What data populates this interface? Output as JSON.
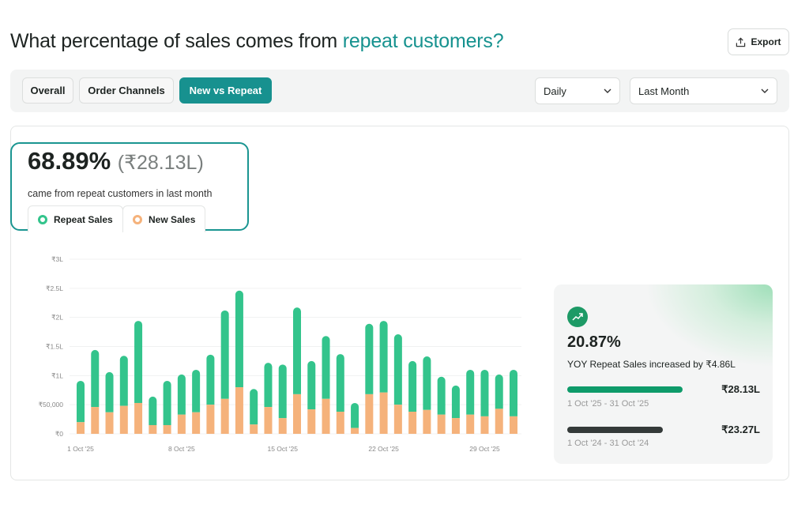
{
  "header": {
    "title_prefix": "What percentage of sales comes from ",
    "title_highlight": "repeat customers?",
    "export_label": "Export",
    "export_icon": "upload-icon"
  },
  "tabs": [
    {
      "label": "Overall",
      "active": false
    },
    {
      "label": "Order Channels",
      "active": false
    },
    {
      "label": "New vs Repeat",
      "active": true
    }
  ],
  "filters": {
    "granularity": "Daily",
    "period": "Last Month"
  },
  "summary": {
    "percent": "68.89%",
    "amount": "(₹28.13L)",
    "caption": "came from repeat customers in last month",
    "legend": [
      {
        "label": "Repeat Sales",
        "color": "#33c48c"
      },
      {
        "label": "New Sales",
        "color": "#f5b27b"
      }
    ]
  },
  "yoy": {
    "icon": "trending-up-icon",
    "percent": "20.87%",
    "text": "YOY Repeat Sales increased by ₹4.86L",
    "current": {
      "amount": "₹28.13L",
      "range": "1 Oct '25 - 31 Oct '25",
      "color": "#0e9b6a"
    },
    "previous": {
      "amount": "₹23.27L",
      "range": "1 Oct '24 - 31 Oct '24",
      "color": "#343a39"
    }
  },
  "chart_data": {
    "type": "bar",
    "stacked": true,
    "grid": true,
    "ylim": [
      0,
      300000
    ],
    "yticks": [
      {
        "v": 0,
        "label": "₹0"
      },
      {
        "v": 50000,
        "label": "₹50,000"
      },
      {
        "v": 100000,
        "label": "₹1L"
      },
      {
        "v": 150000,
        "label": "₹1.5L"
      },
      {
        "v": 200000,
        "label": "₹2L"
      },
      {
        "v": 250000,
        "label": "₹2.5L"
      },
      {
        "v": 300000,
        "label": "₹3L"
      }
    ],
    "xticks": [
      {
        "i": 0,
        "label": "1 Oct '25"
      },
      {
        "i": 7,
        "label": "8 Oct '25"
      },
      {
        "i": 14,
        "label": "15 Oct '25"
      },
      {
        "i": 21,
        "label": "22 Oct '25"
      },
      {
        "i": 28,
        "label": "29 Oct '25"
      }
    ],
    "categories": [
      "1 Oct",
      "2 Oct",
      "3 Oct",
      "4 Oct",
      "5 Oct",
      "6 Oct",
      "7 Oct",
      "8 Oct",
      "9 Oct",
      "10 Oct",
      "11 Oct",
      "12 Oct",
      "13 Oct",
      "14 Oct",
      "15 Oct",
      "16 Oct",
      "17 Oct",
      "18 Oct",
      "19 Oct",
      "20 Oct",
      "21 Oct",
      "22 Oct",
      "23 Oct",
      "24 Oct",
      "25 Oct",
      "26 Oct",
      "27 Oct",
      "28 Oct",
      "29 Oct",
      "30 Oct",
      "31 Oct"
    ],
    "series": [
      {
        "name": "New Sales",
        "color": "#f5b27b",
        "values": [
          20000,
          46000,
          37000,
          48000,
          53000,
          15000,
          15000,
          33000,
          37000,
          50000,
          60000,
          80000,
          16000,
          46000,
          27000,
          68000,
          42000,
          60000,
          38000,
          10000,
          68000,
          71000,
          50000,
          38000,
          41000,
          33000,
          27000,
          33000,
          30000,
          43000,
          30000
        ]
      },
      {
        "name": "Repeat Sales",
        "color": "#33c48c",
        "values": [
          71000,
          98000,
          69000,
          86000,
          141000,
          49000,
          76000,
          69000,
          73000,
          86000,
          152000,
          166000,
          61000,
          76000,
          92000,
          149000,
          83000,
          108000,
          99000,
          43000,
          121000,
          123000,
          121000,
          87000,
          92000,
          65000,
          56000,
          77000,
          80000,
          59000,
          80000
        ]
      }
    ]
  }
}
